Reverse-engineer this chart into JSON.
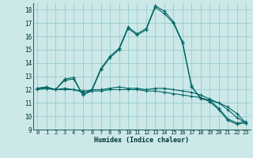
{
  "xlabel": "Humidex (Indice chaleur)",
  "bg_color": "#cce8e8",
  "grid_color": "#99cccc",
  "line_color": "#006666",
  "ylim": [
    9,
    18.5
  ],
  "xlim": [
    -0.5,
    23.5
  ],
  "yticks": [
    9,
    10,
    11,
    12,
    13,
    14,
    15,
    16,
    17,
    18
  ],
  "xticks": [
    0,
    1,
    2,
    3,
    4,
    5,
    6,
    7,
    8,
    9,
    10,
    11,
    12,
    13,
    14,
    15,
    16,
    17,
    18,
    19,
    20,
    21,
    22,
    23
  ],
  "series": [
    [
      12.1,
      12.2,
      12.0,
      12.7,
      12.8,
      11.6,
      11.9,
      13.5,
      14.4,
      15.0,
      16.6,
      16.1,
      16.5,
      18.2,
      17.7,
      17.0,
      15.5,
      12.2,
      11.4,
      11.1,
      10.5,
      9.7,
      9.4,
      9.5
    ],
    [
      12.0,
      12.1,
      12.0,
      12.1,
      12.0,
      11.8,
      12.0,
      12.0,
      12.1,
      12.2,
      12.1,
      12.1,
      12.0,
      12.1,
      12.1,
      12.0,
      11.9,
      11.8,
      11.6,
      11.3,
      11.0,
      10.5,
      9.9,
      9.5
    ],
    [
      12.1,
      12.1,
      12.0,
      12.0,
      12.0,
      11.9,
      11.9,
      11.9,
      12.0,
      12.0,
      12.0,
      12.0,
      11.9,
      11.9,
      11.8,
      11.7,
      11.6,
      11.5,
      11.4,
      11.2,
      11.0,
      10.7,
      10.2,
      9.5
    ],
    [
      12.1,
      12.2,
      12.0,
      12.8,
      12.9,
      11.6,
      12.0,
      13.6,
      14.5,
      15.1,
      16.7,
      16.2,
      16.6,
      18.3,
      17.9,
      17.1,
      15.6,
      12.3,
      11.3,
      11.2,
      10.6,
      9.8,
      9.5,
      9.6
    ]
  ]
}
